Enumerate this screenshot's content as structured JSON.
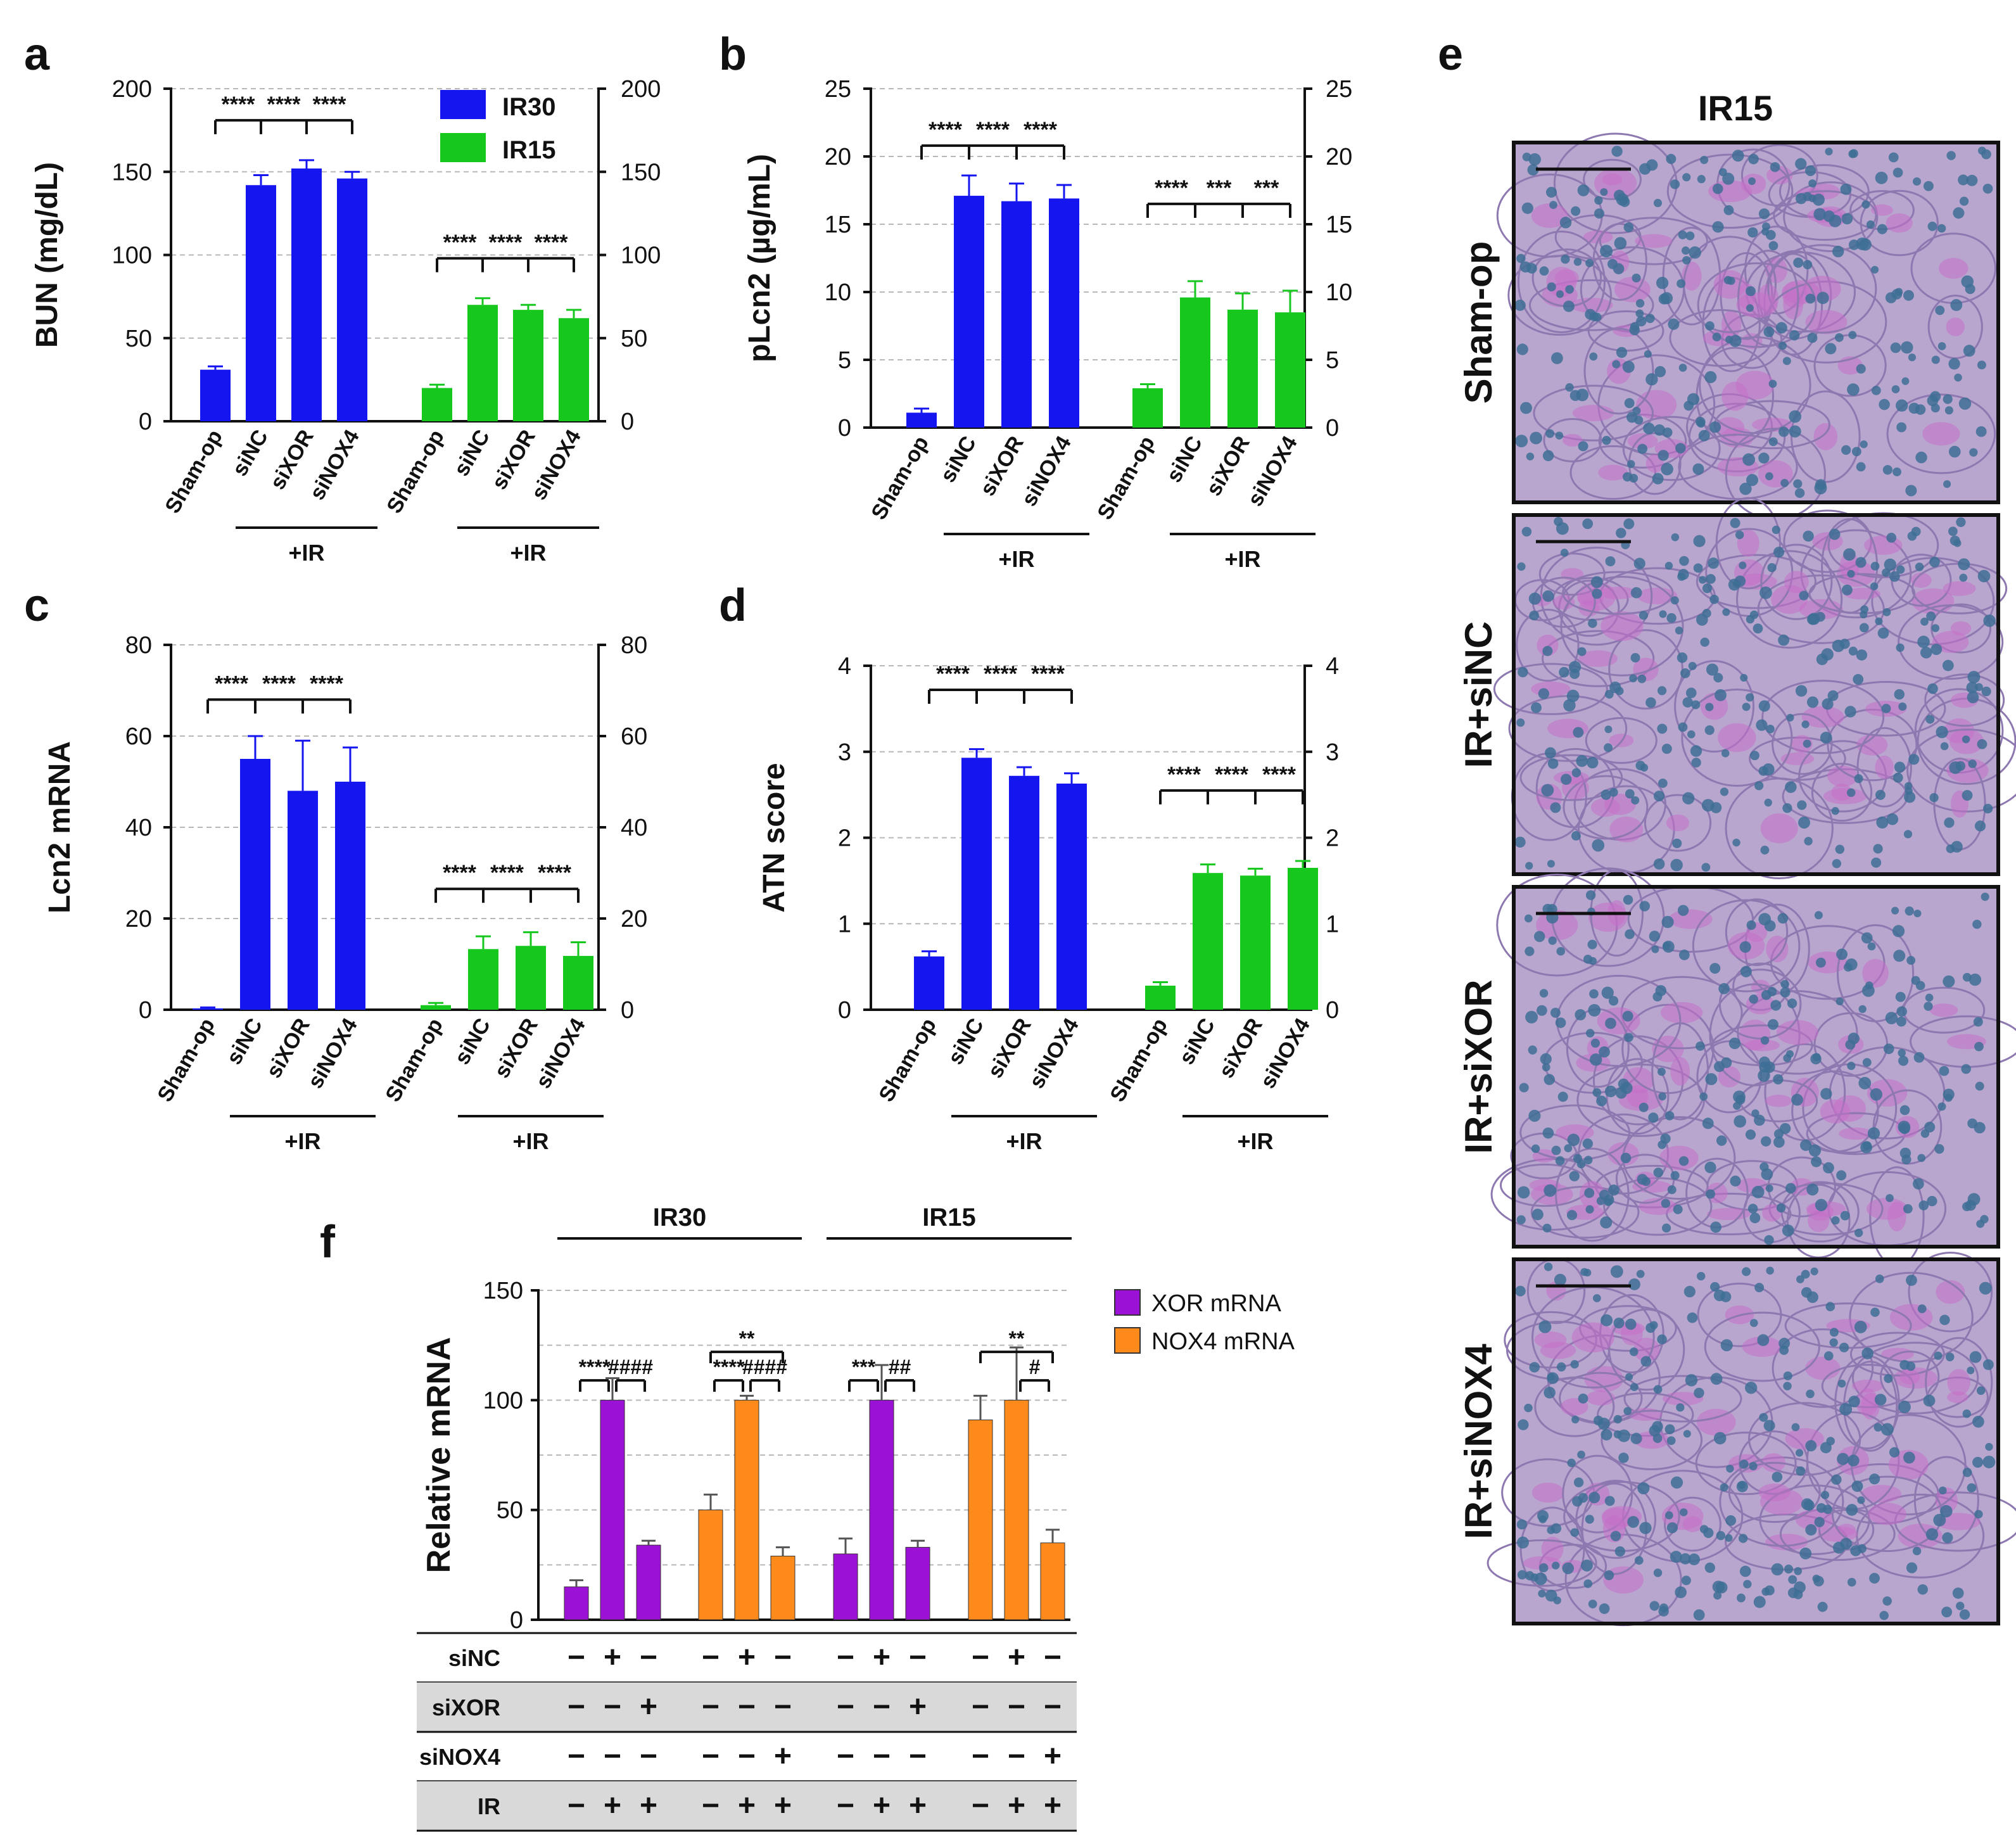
{
  "panel_labels": [
    "a",
    "b",
    "c",
    "d",
    "e",
    "f"
  ],
  "colors": {
    "ir30": "#1515f0",
    "ir15": "#16c81e",
    "xor": "#9b12d6",
    "nox4": "#ff8a1c",
    "grid": "#b8b8b8",
    "table_shade": "#d9d9d9"
  },
  "common": {
    "group_categories": [
      "Sham-op",
      "siNC",
      "siXOR",
      "siNOX4"
    ],
    "treatment_label": "+IR"
  },
  "legend_ab": [
    "IR30",
    "IR15"
  ],
  "chart_data": [
    {
      "id": "a",
      "type": "bar",
      "ylabel": "BUN (mg/dL)",
      "ylim": [
        0,
        200
      ],
      "ticks": [
        0,
        50,
        100,
        150,
        200
      ],
      "categories": [
        "Sham-op",
        "siNC",
        "siXOR",
        "siNOX4"
      ],
      "series": [
        {
          "name": "IR30",
          "values": [
            31,
            142,
            152,
            146
          ],
          "errors": [
            2,
            6,
            5,
            4
          ],
          "significance": {
            "top": 181,
            "labels": [
              "****",
              "****",
              "****"
            ]
          }
        },
        {
          "name": "IR15",
          "values": [
            20,
            70,
            67,
            62
          ],
          "errors": [
            2,
            4,
            3,
            5
          ],
          "significance": {
            "top": 98,
            "labels": [
              "****",
              "****",
              "****"
            ]
          }
        }
      ]
    },
    {
      "id": "b",
      "type": "bar",
      "ylabel": "pLcn2 (µg/mL)",
      "ylim": [
        0,
        25
      ],
      "ticks": [
        0,
        5,
        10,
        15,
        20,
        25
      ],
      "categories": [
        "Sham-op",
        "siNC",
        "siXOR",
        "siNOX4"
      ],
      "series": [
        {
          "name": "IR30",
          "values": [
            1.1,
            17.1,
            16.7,
            16.9
          ],
          "errors": [
            0.3,
            1.5,
            1.3,
            1.0
          ],
          "significance": {
            "top": 20.8,
            "labels": [
              "****",
              "****",
              "****"
            ]
          }
        },
        {
          "name": "IR15",
          "values": [
            2.9,
            9.6,
            8.7,
            8.5
          ],
          "errors": [
            0.3,
            1.2,
            1.2,
            1.6
          ],
          "significance": {
            "top": 16.5,
            "labels": [
              "****",
              "***",
              "***"
            ]
          }
        }
      ]
    },
    {
      "id": "c",
      "type": "bar",
      "ylabel": "Lcn2 mRNA",
      "ylim": [
        0,
        80
      ],
      "ticks": [
        0,
        20,
        40,
        60,
        80
      ],
      "categories": [
        "Sham-op",
        "siNC",
        "siXOR",
        "siNOX4"
      ],
      "series": [
        {
          "name": "IR30",
          "values": [
            0.3,
            55,
            48,
            50
          ],
          "errors": [
            0.2,
            5,
            11,
            7.5
          ],
          "significance": {
            "top": 68,
            "labels": [
              "****",
              "****",
              "****"
            ]
          }
        },
        {
          "name": "IR15",
          "values": [
            1.0,
            13.3,
            14,
            11.8
          ],
          "errors": [
            0.5,
            2.8,
            3,
            3
          ],
          "significance": {
            "top": 26.5,
            "labels": [
              "****",
              "****",
              "****"
            ]
          }
        }
      ]
    },
    {
      "id": "d",
      "type": "bar",
      "ylabel": "ATN score",
      "ylim": [
        0,
        4
      ],
      "ticks": [
        0,
        1,
        2,
        3,
        4
      ],
      "categories": [
        "Sham-op",
        "siNC",
        "siXOR",
        "siNOX4"
      ],
      "series": [
        {
          "name": "IR30",
          "values": [
            0.62,
            2.93,
            2.72,
            2.63
          ],
          "errors": [
            0.06,
            0.1,
            0.1,
            0.12
          ],
          "significance": {
            "top": 3.72,
            "labels": [
              "****",
              "****",
              "****"
            ]
          }
        },
        {
          "name": "IR15",
          "values": [
            0.28,
            1.59,
            1.56,
            1.65
          ],
          "errors": [
            0.04,
            0.1,
            0.08,
            0.08
          ],
          "significance": {
            "top": 2.55,
            "labels": [
              "****",
              "****",
              "****"
            ]
          }
        }
      ]
    },
    {
      "id": "f",
      "type": "bar",
      "ylabel": "Relative mRNA",
      "ylim": [
        0,
        150
      ],
      "ticks": [
        0,
        50,
        100,
        150
      ],
      "legend": [
        "XOR mRNA",
        "NOX4 mRNA"
      ],
      "groups": [
        {
          "header": "IR30",
          "series": "XOR mRNA",
          "values": [
            15,
            100,
            34
          ],
          "errors": [
            3,
            10,
            2
          ],
          "sig": [
            {
              "from": 0,
              "to": 1,
              "label": "****"
            },
            {
              "from": 1,
              "to": 2,
              "label": "####"
            }
          ]
        },
        {
          "header": "IR30",
          "series": "NOX4 mRNA",
          "values": [
            50,
            100,
            29
          ],
          "errors": [
            7,
            2,
            4
          ],
          "sig": [
            {
              "from": 0,
              "to": 1,
              "label": "****"
            },
            {
              "from": 1,
              "to": 2,
              "label": "####"
            },
            {
              "from": 0,
              "to": 2,
              "label": "**"
            }
          ]
        },
        {
          "header": "IR15",
          "series": "XOR mRNA",
          "values": [
            30,
            100,
            33
          ],
          "errors": [
            7,
            16,
            3
          ],
          "sig": [
            {
              "from": 0,
              "to": 1,
              "label": "***"
            },
            {
              "from": 1,
              "to": 2,
              "label": "##"
            }
          ]
        },
        {
          "header": "IR15",
          "series": "NOX4 mRNA",
          "values": [
            91,
            100,
            35
          ],
          "errors": [
            11,
            24,
            6
          ],
          "sig": [
            {
              "from": 1,
              "to": 2,
              "label": "#"
            },
            {
              "from": 0,
              "to": 2,
              "label": "**"
            }
          ]
        }
      ],
      "treatment_table": [
        {
          "label": "siNC",
          "signs": [
            "−",
            "+",
            "−",
            "−",
            "+",
            "−",
            "−",
            "+",
            "−",
            "−",
            "+",
            "−"
          ]
        },
        {
          "label": "siXOR",
          "signs": [
            "−",
            "−",
            "+",
            "−",
            "−",
            "−",
            "−",
            "−",
            "+",
            "−",
            "−",
            "−"
          ]
        },
        {
          "label": "siNOX4",
          "signs": [
            "−",
            "−",
            "−",
            "−",
            "−",
            "+",
            "−",
            "−",
            "−",
            "−",
            "−",
            "+"
          ]
        },
        {
          "label": "IR",
          "signs": [
            "−",
            "+",
            "+",
            "−",
            "+",
            "+",
            "−",
            "+",
            "+",
            "−",
            "+",
            "+"
          ]
        }
      ]
    }
  ],
  "histology": {
    "title": "IR15",
    "rows": [
      "Sham-op",
      "IR+siNC",
      "IR+siXOR",
      "IR+siNOX4"
    ]
  }
}
